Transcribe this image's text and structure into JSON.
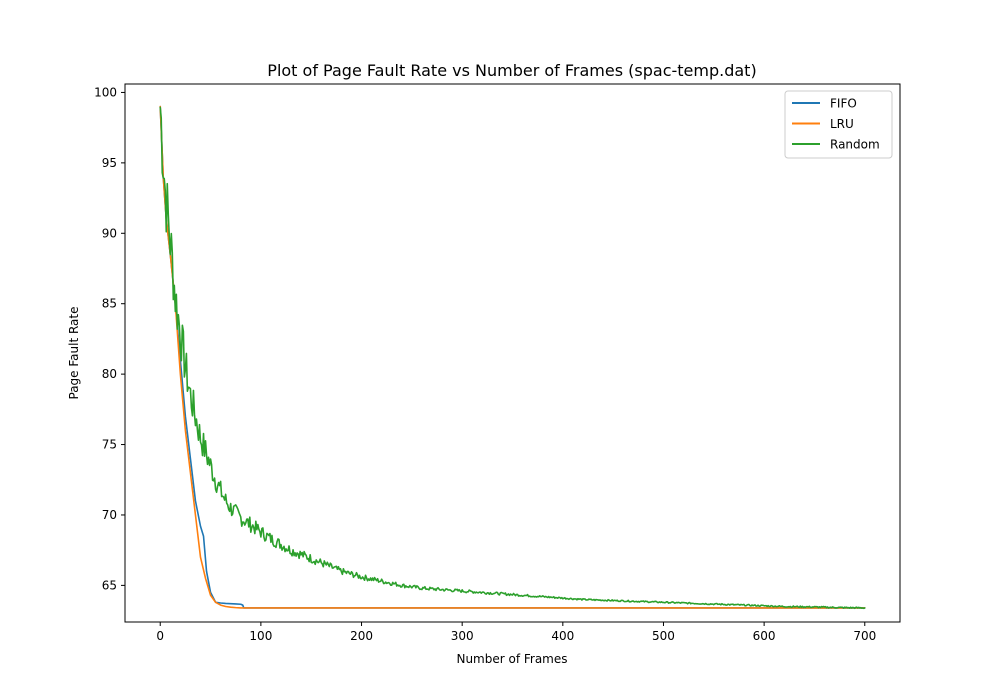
{
  "chart_data": {
    "type": "line",
    "title": "Plot of Page Fault Rate vs Number of Frames (spac-temp.dat)",
    "xlabel": "Number of Frames",
    "ylabel": "Page Fault Rate",
    "xlim": [
      -35,
      735
    ],
    "ylim": [
      62.4,
      100.6
    ],
    "xticks": [
      0,
      100,
      200,
      300,
      400,
      500,
      600,
      700
    ],
    "yticks": [
      65,
      70,
      75,
      80,
      85,
      90,
      95,
      100
    ],
    "grid": false,
    "legend": {
      "position": "top-right",
      "entries": [
        "FIFO",
        "LRU",
        "Random"
      ]
    },
    "series": [
      {
        "name": "FIFO",
        "color": "#1f77b4",
        "x": [
          0,
          3,
          6,
          10,
          15,
          20,
          25,
          30,
          35,
          40,
          43,
          46,
          50,
          55,
          60,
          65,
          70,
          75,
          80,
          82,
          83,
          90,
          100,
          150,
          200,
          300,
          400,
          500,
          600,
          700
        ],
        "y": [
          99.0,
          94.0,
          91.0,
          88.5,
          85.0,
          81.0,
          77.0,
          74.0,
          71.0,
          69.2,
          68.5,
          66.0,
          64.5,
          63.8,
          63.75,
          63.72,
          63.7,
          63.68,
          63.66,
          63.6,
          63.4,
          63.4,
          63.4,
          63.4,
          63.4,
          63.4,
          63.4,
          63.4,
          63.4,
          63.4
        ]
      },
      {
        "name": "LRU",
        "color": "#ff7f0e",
        "x": [
          0,
          3,
          6,
          10,
          15,
          20,
          25,
          30,
          35,
          40,
          45,
          50,
          55,
          60,
          65,
          70,
          75,
          80,
          85,
          100,
          150,
          200,
          300,
          400,
          500,
          600,
          700
        ],
        "y": [
          99.0,
          94.0,
          91.0,
          88.5,
          85.0,
          80.0,
          76.0,
          73.0,
          70.0,
          67.0,
          65.5,
          64.3,
          63.8,
          63.6,
          63.5,
          63.45,
          63.42,
          63.4,
          63.4,
          63.4,
          63.4,
          63.4,
          63.4,
          63.4,
          63.4,
          63.4,
          63.4
        ]
      },
      {
        "name": "Random",
        "color": "#2ca02c",
        "x": [
          0,
          5,
          10,
          15,
          20,
          25,
          30,
          35,
          40,
          45,
          50,
          55,
          60,
          65,
          70,
          80,
          90,
          100,
          110,
          120,
          130,
          140,
          150,
          160,
          170,
          180,
          190,
          200,
          220,
          240,
          260,
          280,
          300,
          320,
          340,
          360,
          380,
          400,
          420,
          440,
          460,
          480,
          500,
          520,
          540,
          560,
          580,
          600,
          620,
          640,
          660,
          680,
          700
        ],
        "y": [
          99.0,
          93.0,
          89.5,
          85.5,
          83.0,
          80.5,
          78.5,
          77.0,
          75.5,
          74.5,
          73.5,
          72.5,
          71.7,
          71.0,
          70.5,
          69.8,
          69.3,
          68.8,
          68.3,
          67.9,
          67.5,
          67.2,
          66.9,
          66.6,
          66.3,
          66.0,
          65.8,
          65.6,
          65.3,
          65.0,
          64.8,
          64.7,
          64.6,
          64.5,
          64.4,
          64.3,
          64.2,
          64.1,
          64.0,
          63.95,
          63.9,
          63.85,
          63.8,
          63.75,
          63.7,
          63.65,
          63.6,
          63.55,
          63.5,
          63.48,
          63.45,
          63.42,
          63.4
        ]
      }
    ]
  }
}
